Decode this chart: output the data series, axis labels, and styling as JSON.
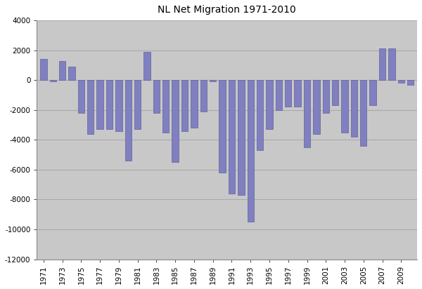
{
  "title": "NL Net Migration 1971-2010",
  "years": [
    1971,
    1972,
    1973,
    1974,
    1975,
    1976,
    1977,
    1978,
    1979,
    1980,
    1981,
    1982,
    1983,
    1984,
    1985,
    1986,
    1987,
    1988,
    1989,
    1990,
    1991,
    1992,
    1993,
    1994,
    1995,
    1996,
    1997,
    1998,
    1999,
    2000,
    2001,
    2002,
    2003,
    2004,
    2005,
    2006,
    2007,
    2008,
    2009,
    2010
  ],
  "values": [
    1400,
    -100,
    1300,
    900,
    -2200,
    -3600,
    -3300,
    -3300,
    -3400,
    -5400,
    -3300,
    1900,
    -2200,
    -3500,
    -5500,
    -3400,
    -3200,
    -2100,
    -100,
    -6200,
    -7600,
    -7700,
    -9500,
    -4700,
    -3300,
    -2000,
    -1800,
    -1800,
    -4500,
    -3600,
    -2200,
    -1700,
    -3500,
    -3800,
    -4400,
    -1700,
    2100,
    2100,
    -200,
    -300
  ],
  "bar_color": "#8080c0",
  "bar_edge_color": "#6060a0",
  "background_color": "#c8c8c8",
  "ylim": [
    -12000,
    4000
  ],
  "yticks": [
    -12000,
    -10000,
    -8000,
    -6000,
    -4000,
    -2000,
    0,
    2000,
    4000
  ],
  "grid_color": "#aaaaaa",
  "title_fontsize": 10,
  "tick_fontsize": 7.5,
  "fig_bg": "#ffffff"
}
